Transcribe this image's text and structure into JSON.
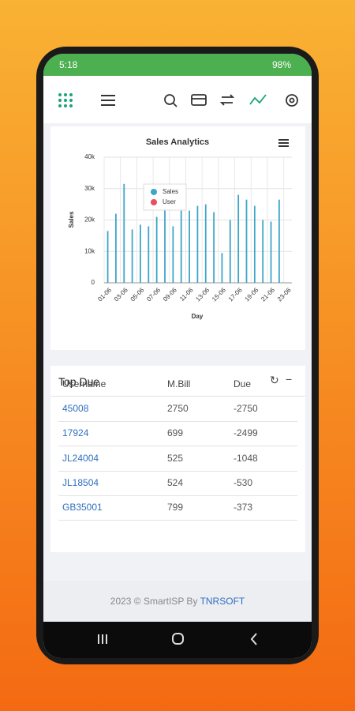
{
  "status_bar": {
    "time": "5:18",
    "battery": "98%"
  },
  "chart_data": {
    "type": "bar",
    "title": "Sales Analytics",
    "x_label": "Day",
    "y_label": "Sales",
    "categories": [
      "01-06",
      null,
      "03-06",
      null,
      "05-06",
      null,
      "07-06",
      null,
      "09-06",
      null,
      "11-06",
      null,
      "13-06",
      null,
      "15-06",
      null,
      "17-06",
      null,
      "19-06",
      null,
      "21-06",
      null,
      "23-06"
    ],
    "series": [
      {
        "name": "Sales",
        "color": "#3ea6c9",
        "values": [
          16500,
          22000,
          31500,
          17000,
          18500,
          18000,
          21000,
          23500,
          18000,
          23000,
          23000,
          24500,
          25000,
          22500,
          9500,
          20000,
          28000,
          26500,
          24500,
          20000,
          19500,
          26500,
          0
        ]
      },
      {
        "name": "User",
        "color": "#e8505b",
        "values": [
          0,
          0,
          0,
          0,
          0,
          0,
          0,
          0,
          0,
          0,
          0,
          0,
          0,
          0,
          0,
          0,
          0,
          0,
          0,
          0,
          0,
          0,
          0
        ]
      }
    ],
    "ylim": [
      0,
      40000
    ],
    "yticks": [
      0,
      {
        "value": 10000,
        "label": "10k"
      },
      {
        "value": 20000,
        "label": "20k"
      },
      {
        "value": 30000,
        "label": "30k"
      },
      {
        "value": 40000,
        "label": "40k"
      }
    ],
    "grid": true
  },
  "table": {
    "title": "Top Due",
    "headers": [
      "Username",
      "M.Bill",
      "Due"
    ],
    "rows": [
      [
        "45008",
        "2750",
        "-2750"
      ],
      [
        "17924",
        "699",
        "-2499"
      ],
      [
        "JL24004",
        "525",
        "-1048"
      ],
      [
        "JL18504",
        "524",
        "-530"
      ],
      [
        "GB35001",
        "799",
        "-373"
      ]
    ]
  },
  "footer": {
    "text": "2023 © SmartISP By",
    "link": "TNRSOFT"
  }
}
